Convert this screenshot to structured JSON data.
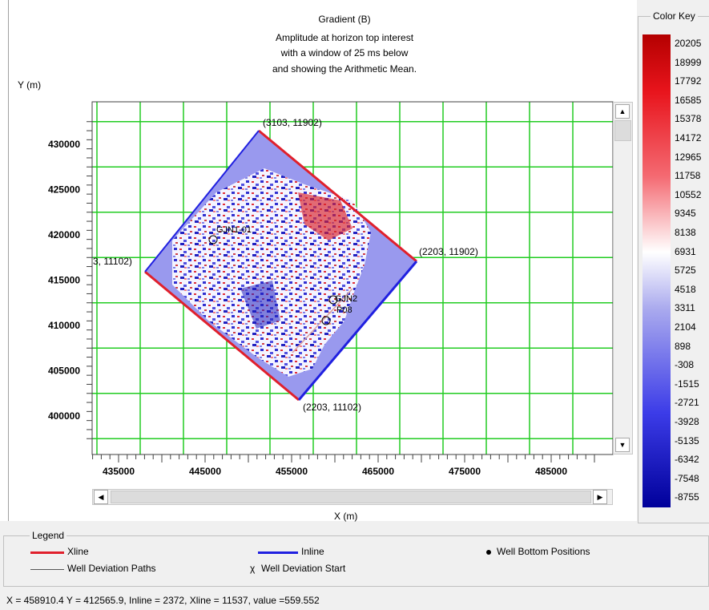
{
  "plot": {
    "title_lines": [
      "Gradient  (B)",
      "Amplitude at horizon top interest",
      "with a window of 25 ms below",
      "and showing the Arithmetic Mean."
    ],
    "ylabel": "Y (m)",
    "xlabel": "X (m)",
    "y_ticks": [
      "430000",
      "425000",
      "420000",
      "415000",
      "410000",
      "405000",
      "400000"
    ],
    "x_ticks": [
      "435000",
      "445000",
      "455000",
      "465000",
      "475000",
      "485000"
    ],
    "corner_labels": {
      "top": "(3103, 11902)",
      "right": "(2203, 11902)",
      "bottom": "(2203, 11102)",
      "left": "3, 11102)"
    },
    "wells": [
      "GJN1-01",
      "GJN2",
      "P08"
    ],
    "colors": {
      "grid": "#22cc22",
      "xline": "#e0202c",
      "inline": "#2020e0",
      "survey_fill": "#9999ee"
    }
  },
  "scroll": {
    "up": "▲",
    "down": "▼",
    "left": "◀",
    "right": "▶"
  },
  "color_key": {
    "title": "Color Key",
    "values": [
      "20205",
      "18999",
      "17792",
      "16585",
      "15378",
      "14172",
      "12965",
      "11758",
      "10552",
      "9345",
      "8138",
      "6931",
      "5725",
      "4518",
      "3311",
      "2104",
      "898",
      "-308",
      "-1515",
      "-2721",
      "-3928",
      "-5135",
      "-6342",
      "-7548",
      "-8755"
    ],
    "colors": {
      "max": "#b40000",
      "mid": "#ffffff",
      "min": "#00009a"
    }
  },
  "legend": {
    "title": "Legend",
    "xline": "Xline",
    "inline": "Inline",
    "well_bottom": "Well Bottom Positions",
    "well_paths": "Well Deviation Paths",
    "well_start": "Well Deviation Start",
    "well_start_symbol": "χ"
  },
  "status": {
    "text": "X =  458910.4  Y =   412565.9,  Inline = 2372, Xline = 11537, value =559.552"
  }
}
